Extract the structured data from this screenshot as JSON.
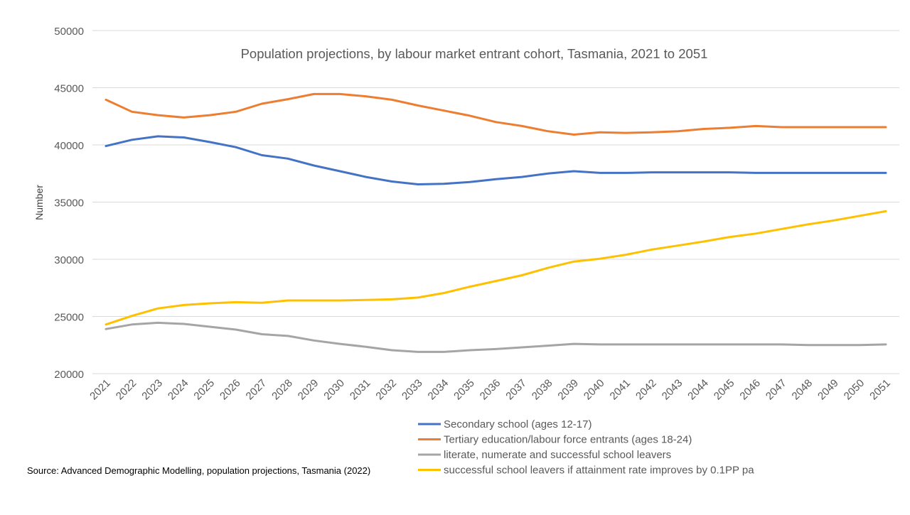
{
  "chart_data": {
    "type": "line",
    "title": "Population projections, by labour market entrant cohort, Tasmania, 2021 to 2051",
    "xlabel": "",
    "ylabel": "Number",
    "ylim": [
      20000,
      50000
    ],
    "yticks": [
      20000,
      25000,
      30000,
      35000,
      40000,
      45000,
      50000
    ],
    "grid": true,
    "legend_placement": "bottom",
    "x": [
      2021,
      2022,
      2023,
      2024,
      2025,
      2026,
      2027,
      2028,
      2029,
      2030,
      2031,
      2032,
      2033,
      2034,
      2035,
      2036,
      2037,
      2038,
      2039,
      2040,
      2041,
      2042,
      2043,
      2044,
      2045,
      2046,
      2047,
      2048,
      2049,
      2050,
      2051
    ],
    "series": [
      {
        "name": "Secondary school (ages 12-17)",
        "color": "#4472C4",
        "values": [
          39900,
          40450,
          40750,
          40650,
          40250,
          39800,
          39100,
          38800,
          38200,
          37700,
          37200,
          36800,
          36550,
          36600,
          36750,
          37000,
          37200,
          37500,
          37700,
          37550,
          37550,
          37600,
          37600,
          37600,
          37600,
          37550,
          37550,
          37550,
          37550,
          37550,
          37550
        ]
      },
      {
        "name": "Tertiary education/labour force entrants (ages 18-24)",
        "color": "#ED7D31",
        "values": [
          43950,
          42900,
          42600,
          42400,
          42600,
          42900,
          43600,
          44000,
          44450,
          44450,
          44250,
          43950,
          43450,
          43000,
          42550,
          42000,
          41650,
          41200,
          40900,
          41100,
          41050,
          41100,
          41200,
          41400,
          41500,
          41650,
          41550,
          41550,
          41550,
          41550,
          41550
        ]
      },
      {
        "name": "literate, numerate and successful school leavers",
        "color": "#A5A5A5",
        "values": [
          23900,
          24300,
          24450,
          24350,
          24100,
          23850,
          23450,
          23300,
          22900,
          22600,
          22350,
          22050,
          21900,
          21900,
          22050,
          22150,
          22300,
          22450,
          22600,
          22550,
          22550,
          22550,
          22550,
          22550,
          22550,
          22550,
          22550,
          22500,
          22500,
          22500,
          22550
        ]
      },
      {
        "name": "successful school leavers if attainment rate improves by 0.1PP pa",
        "color": "#FFC000",
        "values": [
          24300,
          25050,
          25700,
          26000,
          26150,
          26250,
          26200,
          26400,
          26400,
          26400,
          26450,
          26500,
          26650,
          27050,
          27600,
          28100,
          28600,
          29250,
          29800,
          30050,
          30400,
          30850,
          31200,
          31550,
          31950,
          32250,
          32650,
          33050,
          33400,
          33800,
          34200
        ]
      }
    ]
  },
  "source": "Source: Advanced Demographic Modelling, population projections, Tasmania (2022)"
}
